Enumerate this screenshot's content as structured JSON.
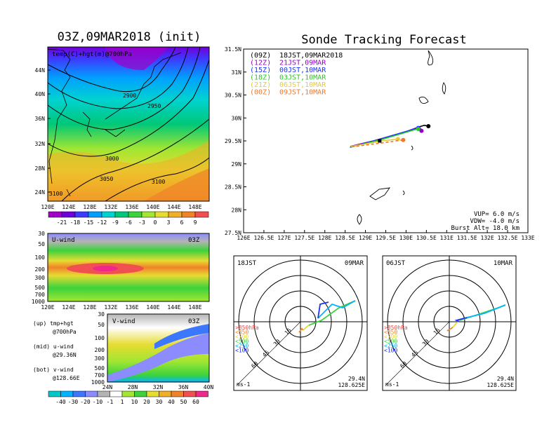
{
  "colors": {
    "temp_scale": [
      "#a000c8",
      "#6e00dc",
      "#3c3cff",
      "#00a0ff",
      "#00d2d2",
      "#00c878",
      "#3cd23c",
      "#a0e632",
      "#e6dc32",
      "#f0af28",
      "#f08228",
      "#f05050"
    ],
    "wind_scale": [
      "#00c8c8",
      "#00b4ff",
      "#3c78ff",
      "#8c8cff",
      "#b4b4b4",
      "#ffffff",
      "#a0e632",
      "#3cd23c",
      "#e6dc32",
      "#f0af28",
      "#f08228",
      "#f05050",
      "#f0288c"
    ],
    "sonde_09Z": "#000000",
    "sonde_12Z": "#9600c8",
    "sonde_15Z": "#1e32ff",
    "sonde_18Z": "#28c828",
    "sonde_21Z": "#e6c83c",
    "sonde_00Z": "#f07828"
  },
  "map_panel": {
    "title": "03Z,09MAR2018 (init)",
    "label": "temp(C)+hgt(m)@700hPa",
    "lat_ticks": [
      "44N",
      "40N",
      "36N",
      "32N",
      "28N",
      "24N"
    ],
    "lon_ticks": [
      "120E",
      "124E",
      "128E",
      "132E",
      "136E",
      "140E",
      "144E",
      "148E"
    ],
    "contour_labels": [
      "2900",
      "2950",
      "3000",
      "3050",
      "3100",
      "3100"
    ],
    "colorbar_ticks": [
      "-21",
      "-18",
      "-15",
      "-12",
      "-9",
      "-6",
      "-3",
      "0",
      "3",
      "6",
      "9"
    ]
  },
  "uwind_panel": {
    "title": "U-wind",
    "time": "03Z",
    "p_ticks": [
      "30",
      "50",
      "100",
      "200",
      "300",
      "500",
      "700",
      "1000"
    ],
    "lon_ticks": [
      "120E",
      "124E",
      "128E",
      "132E",
      "136E",
      "140E",
      "144E",
      "148E"
    ]
  },
  "vwind_panel": {
    "title": "V-wind",
    "time": "03Z",
    "p_ticks": [
      "30",
      "50",
      "100",
      "200",
      "300",
      "500",
      "700",
      "1000"
    ],
    "lat_ticks": [
      "24N",
      "28N",
      "32N",
      "36N",
      "40N"
    ],
    "colorbar_ticks": [
      "-40",
      "-30",
      "-20",
      "-10",
      "-1",
      "1",
      "10",
      "20",
      "30",
      "40",
      "50",
      "60"
    ]
  },
  "side_legend": {
    "up": [
      "(up) tmp+hgt",
      "@700hPa"
    ],
    "mid": [
      "(mid) u-wind",
      "@29.36N"
    ],
    "bot": [
      "(bot) v-wind",
      "@128.66E"
    ]
  },
  "track_panel": {
    "title": "Sonde Tracking Forecast",
    "legend": [
      {
        "time": "(09Z)",
        "text": "18JST,09MAR2018"
      },
      {
        "time": "(12Z)",
        "text": "21JST,09MAR"
      },
      {
        "time": "(15Z)",
        "text": "00JST,10MAR"
      },
      {
        "time": "(18Z)",
        "text": "03JST,10MAR"
      },
      {
        "time": "(21Z)",
        "text": "06JST,10MAR"
      },
      {
        "time": "(00Z)",
        "text": "09JST,10MAR"
      }
    ],
    "params": [
      "VUP= 6.0 m/s",
      "VDW= -4.0 m/s",
      "Burst Alt= 18.0 km"
    ]
  },
  "hodo_left": {
    "left_title": "18JST",
    "right_title": "09MAR",
    "lat": "29.4N",
    "lon": "128.625E",
    "unit": "ms-1"
  },
  "hodo_right": {
    "left_title": "06JST",
    "right_title": "10MAR",
    "lat": "29.4N",
    "lon": "128.625E",
    "unit": "ms-1"
  },
  "hodo_common": {
    "ring_labels": [
      "15",
      "30",
      "45",
      "60"
    ],
    "pressure_legend": [
      ">850hPa",
      "<850",
      "<700",
      "<500",
      "<250",
      "<100"
    ]
  },
  "chart_data": {
    "type": "line",
    "title": "Sonde Tracking Forecast",
    "xlim": [
      126,
      133
    ],
    "ylim": [
      27.5,
      31.5
    ],
    "x_ticks": [
      "126E",
      "126.5E",
      "127E",
      "127.5E",
      "128E",
      "128.5E",
      "129E",
      "129.5E",
      "130E",
      "130.5E",
      "131E",
      "131.5E",
      "132E",
      "132.5E",
      "133E"
    ],
    "y_ticks": [
      "27.5N",
      "28N",
      "28.5N",
      "29N",
      "29.5N",
      "30N",
      "30.5N",
      "31N",
      "31.5N"
    ],
    "series": [
      {
        "name": "(09Z) 18JST,09MAR2018",
        "x": [
          128.63,
          129.2,
          129.6,
          130.0,
          130.3,
          130.45,
          130.55
        ],
        "y": [
          29.38,
          29.5,
          29.6,
          29.7,
          29.8,
          29.84,
          29.82
        ]
      },
      {
        "name": "(12Z) 21JST,09MAR",
        "x": [
          128.63,
          129.2,
          129.6,
          130.0,
          130.25,
          130.35,
          130.38
        ],
        "y": [
          29.38,
          29.5,
          29.6,
          29.7,
          29.78,
          29.78,
          29.72
        ]
      },
      {
        "name": "(15Z) 00JST,10MAR",
        "x": [
          128.62,
          128.9,
          129.4,
          129.9,
          130.2,
          130.3
        ],
        "y": [
          29.36,
          29.43,
          29.55,
          29.68,
          29.76,
          29.78
        ]
      },
      {
        "name": "(18Z) 03JST,10MAR",
        "x": [
          128.62,
          128.9,
          129.4,
          129.9,
          130.2,
          130.3
        ],
        "y": [
          29.37,
          29.42,
          29.53,
          29.66,
          29.74,
          29.76
        ]
      },
      {
        "name": "(21Z) 06JST,10MAR",
        "x": [
          128.64,
          129.1,
          129.4,
          129.6,
          129.8
        ],
        "y": [
          29.38,
          29.45,
          29.5,
          29.52,
          29.54
        ]
      },
      {
        "name": "(00Z) 09JST,10MAR",
        "x": [
          128.66,
          129.1,
          129.45,
          129.75,
          129.93
        ],
        "y": [
          29.37,
          29.42,
          29.46,
          29.5,
          29.52
        ]
      }
    ]
  }
}
